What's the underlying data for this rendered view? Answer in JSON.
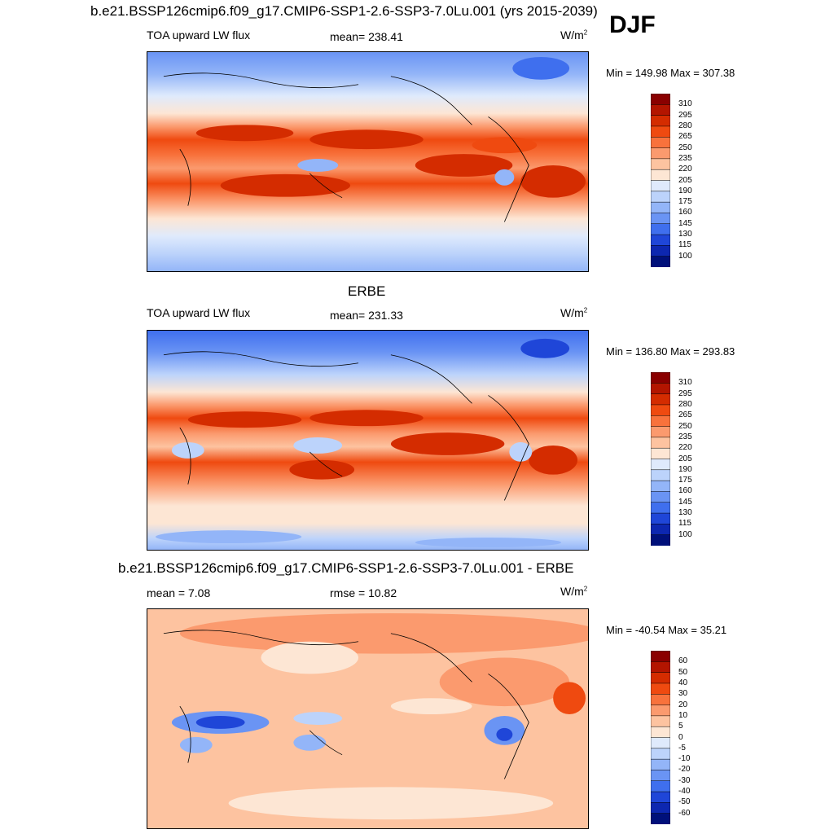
{
  "season": "DJF",
  "panels": [
    {
      "title": "b.e21.BSSP126cmip6.f09_g17.CMIP6-SSP1-2.6-SSP3-7.0Lu.001 (yrs 2015-2039)",
      "left_label": "TOA upward LW flux",
      "center_label": "mean= 238.41",
      "units": "W/m",
      "units_sup": "2",
      "minmax": "Min = 149.98 Max = 307.38",
      "colorbar_ticks": [
        "310",
        "295",
        "280",
        "265",
        "250",
        "235",
        "220",
        "205",
        "190",
        "175",
        "160",
        "145",
        "130",
        "115",
        "100"
      ],
      "colors": [
        "#8a0000",
        "#b31500",
        "#d42c00",
        "#ef4a10",
        "#f8723c",
        "#fb9a6e",
        "#fdc3a0",
        "#fde6d4",
        "#dfeafc",
        "#bcd3fb",
        "#93b5f8",
        "#6a94f4",
        "#3f6fee",
        "#1f46d8",
        "#0d27b0",
        "#00107a"
      ]
    },
    {
      "title": "ERBE",
      "left_label": "TOA upward LW flux",
      "center_label": "mean= 231.33",
      "units": "W/m",
      "units_sup": "2",
      "minmax": "Min = 136.80 Max = 293.83",
      "colorbar_ticks": [
        "310",
        "295",
        "280",
        "265",
        "250",
        "235",
        "220",
        "205",
        "190",
        "175",
        "160",
        "145",
        "130",
        "115",
        "100"
      ],
      "colors": [
        "#8a0000",
        "#b31500",
        "#d42c00",
        "#ef4a10",
        "#f8723c",
        "#fb9a6e",
        "#fdc3a0",
        "#fde6d4",
        "#dfeafc",
        "#bcd3fb",
        "#93b5f8",
        "#6a94f4",
        "#3f6fee",
        "#1f46d8",
        "#0d27b0",
        "#00107a"
      ]
    },
    {
      "title": "b.e21.BSSP126cmip6.f09_g17.CMIP6-SSP1-2.6-SSP3-7.0Lu.001 - ERBE",
      "left_label": "mean =   7.08",
      "center_label": "rmse =  10.82",
      "units": "W/m",
      "units_sup": "2",
      "minmax": "Min = -40.54 Max =  35.21",
      "colorbar_ticks": [
        "60",
        "50",
        "40",
        "30",
        "20",
        "10",
        "5",
        "0",
        "-5",
        "-10",
        "-20",
        "-30",
        "-40",
        "-50",
        "-60"
      ],
      "colors": [
        "#8a0000",
        "#b31500",
        "#d42c00",
        "#ef4a10",
        "#f8723c",
        "#fb9a6e",
        "#fdc3a0",
        "#fde6d4",
        "#dfeafc",
        "#bcd3fb",
        "#93b5f8",
        "#6a94f4",
        "#3f6fee",
        "#1f46d8",
        "#0d27b0",
        "#00107a"
      ]
    }
  ],
  "chart_data": [
    {
      "type": "heatmap",
      "title": "b.e21.BSSP126cmip6.f09_g17.CMIP6-SSP1-2.6-SSP3-7.0Lu.001 (yrs 2015-2039)",
      "variable": "TOA upward LW flux",
      "units": "W/m2",
      "mean": 238.41,
      "min": 149.98,
      "max": 307.38,
      "levels": [
        100,
        115,
        130,
        145,
        160,
        175,
        190,
        205,
        220,
        235,
        250,
        265,
        280,
        295,
        310
      ]
    },
    {
      "type": "heatmap",
      "title": "ERBE",
      "variable": "TOA upward LW flux",
      "units": "W/m2",
      "mean": 231.33,
      "min": 136.8,
      "max": 293.83,
      "levels": [
        100,
        115,
        130,
        145,
        160,
        175,
        190,
        205,
        220,
        235,
        250,
        265,
        280,
        295,
        310
      ]
    },
    {
      "type": "heatmap",
      "title": "b.e21.BSSP126cmip6.f09_g17.CMIP6-SSP1-2.6-SSP3-7.0Lu.001 - ERBE",
      "units": "W/m2",
      "mean": 7.08,
      "rmse": 10.82,
      "min": -40.54,
      "max": 35.21,
      "levels": [
        -60,
        -50,
        -40,
        -30,
        -20,
        -10,
        -5,
        0,
        5,
        10,
        20,
        30,
        40,
        50,
        60
      ]
    }
  ]
}
